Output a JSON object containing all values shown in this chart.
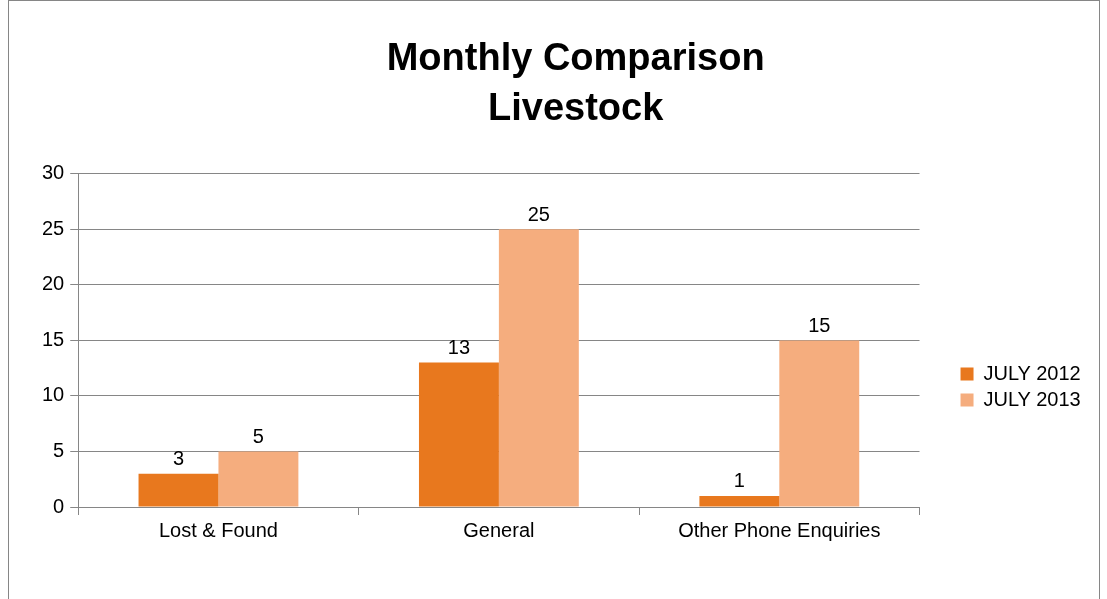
{
  "chart_data": {
    "type": "bar",
    "title": "Monthly Comparison\nLivestock",
    "categories": [
      "Lost & Found",
      "General",
      "Other Phone Enquiries"
    ],
    "series": [
      {
        "name": "JULY 2012",
        "color": "#e8781e",
        "values": [
          3,
          13,
          1
        ]
      },
      {
        "name": "JULY 2013",
        "color": "#f5ad7e",
        "values": [
          5,
          25,
          15
        ]
      }
    ],
    "ylim": [
      0,
      30
    ],
    "yticks": [
      0,
      5,
      10,
      15,
      20,
      25,
      30
    ],
    "grid": "y",
    "legend": "right",
    "data_labels": true
  }
}
